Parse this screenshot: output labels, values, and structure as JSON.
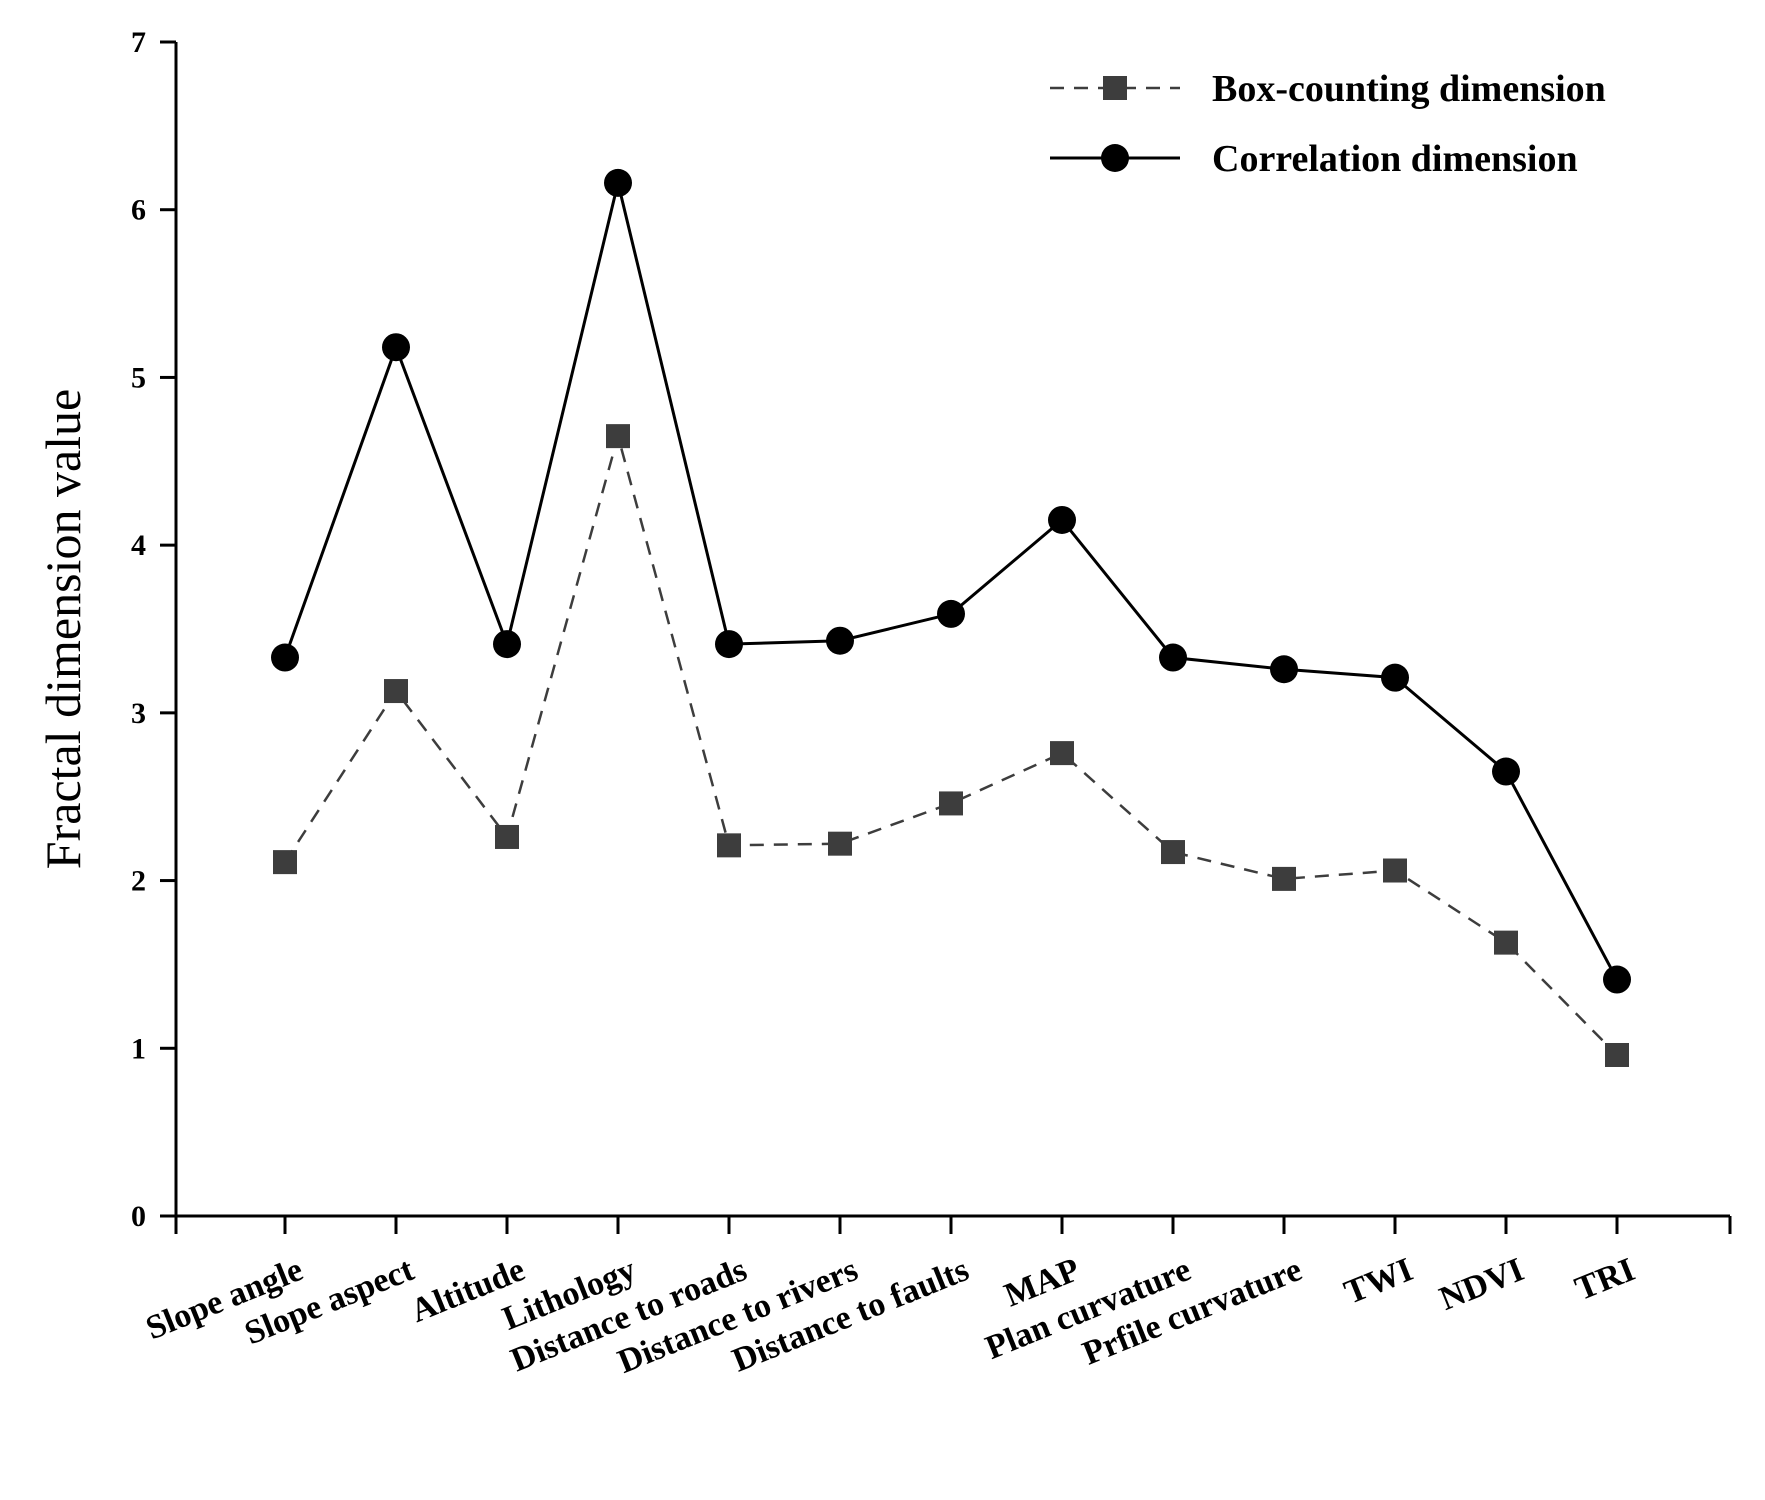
{
  "chart_data": {
    "type": "line",
    "title": "",
    "xlabel": "",
    "ylabel": "Fractal dimension value",
    "ylim": [
      0,
      7
    ],
    "yticks": [
      0,
      1,
      2,
      3,
      4,
      5,
      6,
      7
    ],
    "grid": false,
    "legend_position": "top-right",
    "categories": [
      "Slope angle",
      "Slope aspect",
      "Altitude",
      "Lithology",
      "Distance to roads",
      "Distance to rivers",
      "Distance to faults",
      "MAP",
      "Plan curvature",
      "Prfile curvature",
      "TWI",
      "NDVI",
      "TRI"
    ],
    "series": [
      {
        "name": "Box-counting dimension",
        "marker": "square",
        "line_style": "dashed",
        "color": "#3d3d3d",
        "values": [
          2.11,
          3.13,
          2.26,
          4.65,
          2.21,
          2.22,
          2.46,
          2.76,
          2.17,
          2.01,
          2.06,
          1.63,
          0.96
        ]
      },
      {
        "name": "Correlation dimension",
        "marker": "circle",
        "line_style": "solid",
        "color": "#000000",
        "values": [
          3.33,
          5.18,
          3.41,
          6.16,
          3.41,
          3.43,
          3.59,
          4.15,
          3.33,
          3.26,
          3.21,
          2.65,
          1.41
        ]
      }
    ]
  }
}
